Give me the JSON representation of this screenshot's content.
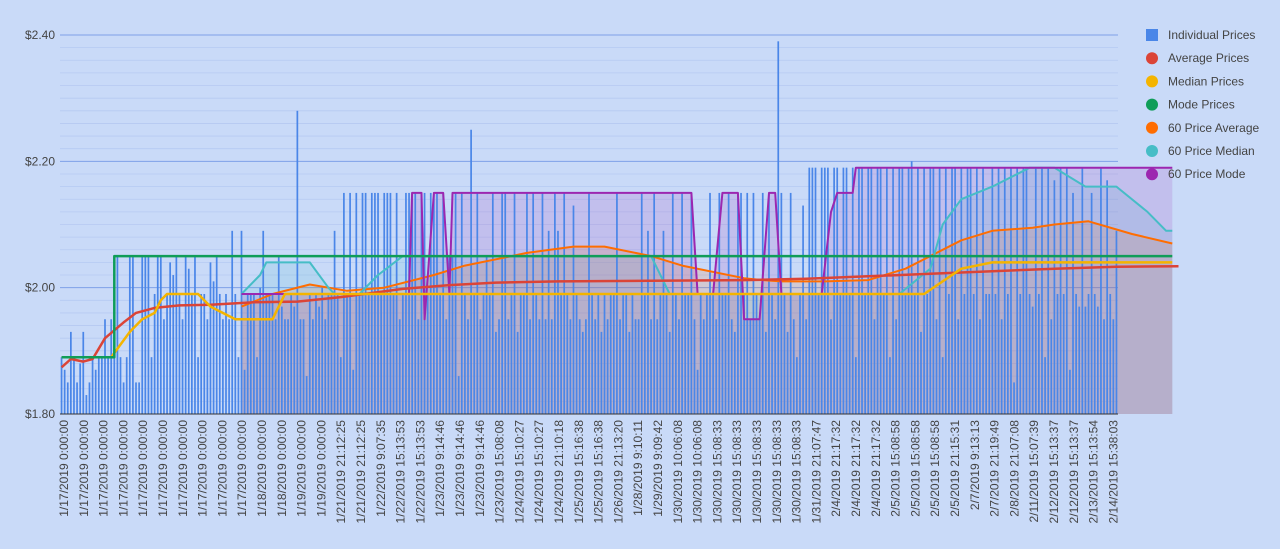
{
  "chart_data": {
    "type": "bar",
    "title": "",
    "xlabel": "",
    "ylabel": "",
    "ylim": [
      1.8,
      2.4
    ],
    "y_ticks": [
      "$1.80",
      "$2.00",
      "$2.20",
      "$2.40"
    ],
    "grid": true,
    "legend_position": "right",
    "x_labels": [
      "1/17/2019 0:00:00",
      "1/17/2019 0:00:00",
      "1/17/2019 0:00:00",
      "1/17/2019 0:00:00",
      "1/17/2019 0:00:00",
      "1/17/2019 0:00:00",
      "1/17/2019 0:00:00",
      "1/17/2019 0:00:00",
      "1/17/2019 0:00:00",
      "1/17/2019 0:00:00",
      "1/18/2019 0:00:00",
      "1/18/2019 0:00:00",
      "1/19/2019 0:00:00",
      "1/19/2019 0:00:00",
      "1/21/2019 21:12:25",
      "1/21/2019 21:12:25",
      "1/22/2019 9:07:35",
      "1/22/2019 15:13:53",
      "1/22/2019 15:13:53",
      "1/23/2019 9:14:46",
      "1/23/2019 9:14:46",
      "1/23/2019 9:14:46",
      "1/23/2019 15:08:08",
      "1/24/2019 15:10:27",
      "1/24/2019 15:10:27",
      "1/24/2019 21:10:18",
      "1/25/2019 15:16:38",
      "1/25/2019 15:16:38",
      "1/26/2019 21:13:20",
      "1/28/2019 9:10:11",
      "1/29/2019 9:09:42",
      "1/30/2019 10:06:08",
      "1/30/2019 10:06:08",
      "1/30/2019 15:08:33",
      "1/30/2019 15:08:33",
      "1/30/2019 15:08:33",
      "1/30/2019 15:08:33",
      "1/30/2019 15:08:33",
      "1/31/2019 21:07:47",
      "2/4/2019 21:17:32",
      "2/4/2019 21:17:32",
      "2/4/2019 21:17:32",
      "2/5/2019 15:08:58",
      "2/5/2019 15:08:58",
      "2/5/2019 15:08:58",
      "2/5/2019 21:15:31",
      "2/7/2019 9:13:13",
      "2/7/2019 21:19:49",
      "2/8/2019 21:07:08",
      "2/11/2019 15:07:39",
      "2/12/2019 15:13:37",
      "2/12/2019 15:13:37",
      "2/13/2019 15:13:54",
      "2/14/2019 15:38:03"
    ],
    "series": [
      {
        "name": "Individual Prices",
        "color": "#4a86e8",
        "kind": "bar",
        "values": [
          1.89,
          1.87,
          1.85,
          1.93,
          1.89,
          1.85,
          1.88,
          1.93,
          1.83,
          1.85,
          1.89,
          1.87,
          1.89,
          1.89,
          1.95,
          1.89,
          1.95,
          2.05,
          2.05,
          1.89,
          1.85,
          1.89,
          2.05,
          2.05,
          1.85,
          1.85,
          2.05,
          2.05,
          2.05,
          1.89,
          1.99,
          2.05,
          2.05,
          1.95,
          1.99,
          2.04,
          2.02,
          2.05,
          1.99,
          1.95,
          2.05,
          2.03,
          1.99,
          2.05,
          1.89,
          1.99,
          1.99,
          1.95,
          2.04,
          2.01,
          2.05,
          1.99,
          1.95,
          1.99,
          1.95,
          2.09,
          1.99,
          1.89,
          2.09,
          1.87,
          1.99,
          1.99,
          1.99,
          1.89,
          2.0,
          2.09,
          1.99,
          1.99,
          1.99,
          1.95,
          2.05,
          1.97,
          1.95,
          1.95,
          1.99,
          1.97,
          2.28,
          1.95,
          1.95,
          1.86,
          1.99,
          1.95,
          1.99,
          1.97,
          2.0,
          1.95,
          1.99,
          1.99,
          2.09,
          1.99,
          1.89,
          2.15,
          1.99,
          2.15,
          1.87,
          2.15,
          1.99,
          2.15,
          2.15,
          1.99,
          2.15,
          2.15,
          2.15,
          1.99,
          2.15,
          2.15,
          2.15,
          1.99,
          2.15,
          1.95,
          1.99,
          2.15,
          2.15,
          2.15,
          2.15,
          1.95,
          2.15,
          2.15,
          1.99,
          2.15,
          2.15,
          2.15,
          1.99,
          2.15,
          1.95,
          2.05,
          2.05,
          2.15,
          1.86,
          2.15,
          1.99,
          1.95,
          2.25,
          1.99,
          2.15,
          1.95,
          1.99,
          2.05,
          1.99,
          2.15,
          1.93,
          1.95,
          2.15,
          2.15,
          1.95,
          1.99,
          2.15,
          1.93,
          1.99,
          1.99,
          2.15,
          1.95,
          2.15,
          1.99,
          1.95,
          2.15,
          1.95,
          2.09,
          1.95,
          2.15,
          2.09,
          1.99,
          2.15,
          1.99,
          1.95,
          2.13,
          1.99,
          1.95,
          1.93,
          1.95,
          2.15,
          1.99,
          1.95,
          1.99,
          1.93,
          1.99,
          1.95,
          1.99,
          1.99,
          2.15,
          1.95,
          1.99,
          1.99,
          1.93,
          1.99,
          1.95,
          1.95,
          2.15,
          1.99,
          2.09,
          1.95,
          2.15,
          1.95,
          1.99,
          2.09,
          1.99,
          1.93,
          2.15,
          1.99,
          1.95,
          2.15,
          1.99,
          1.99,
          2.15,
          1.95,
          1.87,
          1.99,
          1.95,
          1.99,
          2.15,
          1.99,
          1.95,
          2.15,
          1.99,
          1.99,
          2.15,
          1.95,
          1.93,
          2.15,
          2.15,
          1.99,
          2.15,
          1.95,
          2.15,
          1.99,
          1.95,
          2.15,
          1.93,
          2.15,
          1.99,
          1.95,
          2.39,
          2.15,
          1.99,
          1.93,
          2.15,
          1.95,
          1.89,
          1.99,
          2.13,
          1.95,
          2.19,
          2.19,
          2.19,
          1.99,
          2.19,
          2.19,
          2.19,
          1.95,
          2.19,
          2.19,
          1.99,
          2.19,
          2.19,
          1.99,
          2.19,
          1.89,
          2.19,
          2.19,
          1.99,
          2.19,
          2.19,
          1.95,
          2.19,
          2.19,
          1.99,
          2.19,
          1.89,
          2.19,
          1.95,
          2.19,
          2.19,
          1.99,
          2.19,
          2.2,
          1.99,
          2.19,
          1.93,
          2.19,
          1.99,
          2.19,
          2.19,
          1.95,
          2.19,
          1.89,
          2.19,
          1.99,
          2.19,
          2.19,
          1.95,
          2.19,
          1.99,
          2.19,
          2.19,
          1.99,
          2.19,
          1.95,
          2.19,
          1.99,
          1.99,
          2.19,
          1.99,
          2.19,
          1.95,
          2.19,
          1.99,
          2.19,
          1.85,
          2.19,
          1.99,
          2.19,
          2.19,
          1.99,
          1.97,
          2.19,
          1.99,
          2.19,
          1.89,
          2.19,
          1.95,
          2.17,
          1.99,
          2.19,
          1.99,
          2.19,
          1.87,
          2.15,
          1.99,
          1.97,
          2.19,
          1.97,
          1.99,
          2.15,
          1.99,
          1.97,
          2.19,
          1.95,
          2.17,
          1.99,
          1.95,
          2.09
        ]
      },
      {
        "name": "Average Prices",
        "color": "#db4437",
        "kind": "line",
        "x": [
          0,
          3,
          7,
          10,
          14,
          20,
          24,
          30,
          38,
          48,
          62,
          76,
          90,
          110,
          125,
          140,
          160,
          190,
          220,
          240,
          280,
          320,
          340,
          360
        ],
        "values": [
          1.874,
          1.887,
          1.883,
          1.887,
          1.92,
          1.945,
          1.96,
          1.968,
          1.972,
          1.973,
          1.977,
          1.978,
          1.985,
          1.998,
          2.004,
          2.008,
          2.01,
          2.011,
          2.012,
          2.014,
          2.022,
          2.03,
          2.033,
          2.034
        ]
      },
      {
        "name": "Median Prices",
        "color": "#f4b400",
        "kind": "line",
        "x": [
          0,
          16,
          19,
          22,
          26,
          30,
          32,
          34,
          40,
          44,
          48,
          56,
          62,
          68,
          72,
          78,
          90,
          130,
          200,
          260,
          278,
          290,
          300,
          358
        ],
        "values": [
          1.89,
          1.89,
          1.91,
          1.93,
          1.95,
          1.96,
          1.98,
          1.99,
          1.99,
          1.99,
          1.97,
          1.95,
          1.95,
          1.95,
          1.99,
          1.99,
          1.99,
          1.99,
          1.99,
          1.99,
          1.99,
          2.03,
          2.04,
          2.04
        ]
      },
      {
        "name": "Mode Prices",
        "color": "#0f9d58",
        "kind": "line",
        "x": [
          0,
          17,
          17.01,
          358
        ],
        "values": [
          1.89,
          1.89,
          2.05,
          2.05
        ]
      },
      {
        "name": "60 Price Average",
        "color": "#ff6d01",
        "kind": "area",
        "x": [
          58,
          68,
          80,
          92,
          104,
          120,
          130,
          145,
          150,
          165,
          175,
          190,
          200,
          220,
          226,
          232,
          246,
          260,
          272,
          290,
          300,
          313,
          320,
          331,
          345,
          358
        ],
        "values": [
          1.97,
          1.99,
          2.005,
          1.995,
          2.0,
          2.02,
          2.035,
          2.05,
          2.055,
          2.065,
          2.065,
          2.05,
          2.035,
          2.015,
          2.012,
          2.01,
          2.01,
          2.012,
          2.03,
          2.075,
          2.09,
          2.095,
          2.1,
          2.105,
          2.085,
          2.07
        ]
      },
      {
        "name": "60 Price Median",
        "color": "#46bdc6",
        "kind": "area",
        "x": [
          58,
          64,
          66,
          72,
          80,
          86,
          88,
          96,
          102,
          110,
          118,
          124,
          130,
          135,
          190,
          196,
          210,
          270,
          280,
          284,
          290,
          300,
          312,
          320,
          330,
          340,
          350,
          356,
          358
        ],
        "values": [
          1.99,
          2.02,
          2.04,
          2.04,
          2.04,
          2.0,
          1.99,
          1.99,
          2.02,
          2.05,
          2.05,
          2.05,
          2.05,
          2.05,
          2.05,
          1.99,
          1.99,
          1.99,
          2.03,
          2.1,
          2.14,
          2.16,
          2.19,
          2.19,
          2.16,
          2.16,
          2.12,
          2.09,
          2.09
        ]
      },
      {
        "name": "60 Price Mode",
        "color": "#9c27b0",
        "kind": "area",
        "x": [
          58,
          90,
          112,
          113,
          116,
          117,
          120,
          123,
          125,
          126,
          128,
          200,
          203,
          205,
          206,
          210,
          213,
          215,
          218,
          220,
          222,
          225,
          228,
          230,
          232,
          245,
          248,
          250,
          252,
          255,
          256,
          358
        ],
        "values": [
          1.99,
          1.99,
          1.99,
          2.15,
          2.15,
          1.95,
          2.15,
          2.15,
          1.99,
          2.15,
          2.15,
          2.15,
          2.15,
          1.99,
          1.99,
          1.99,
          2.15,
          2.15,
          2.15,
          1.95,
          1.95,
          1.95,
          2.15,
          2.15,
          1.99,
          1.99,
          2.12,
          2.15,
          2.15,
          2.15,
          2.19,
          2.19
        ]
      }
    ]
  }
}
